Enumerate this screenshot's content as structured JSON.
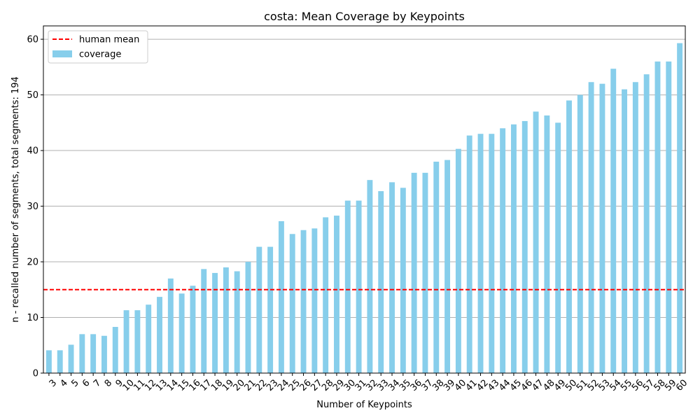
{
  "chart_data": {
    "type": "bar",
    "title": "costa: Mean Coverage by Keypoints",
    "xlabel": "Number of Keypoints",
    "ylabel": "n - recalled number of segments, total segments: 194",
    "ylim": [
      0,
      62.4
    ],
    "yticks": [
      0,
      10,
      20,
      30,
      40,
      50,
      60
    ],
    "grid": "horizontal",
    "legend_position": "top-left",
    "bar_color": "#87ceeb",
    "reference_line": {
      "name": "human mean",
      "value": 15,
      "color": "#ff0000",
      "style": "dashed"
    },
    "series": [
      {
        "name": "coverage"
      }
    ],
    "categories": [
      "3",
      "4",
      "5",
      "6",
      "7",
      "8",
      "9",
      "10",
      "11",
      "12",
      "13",
      "14",
      "15",
      "16",
      "17",
      "18",
      "19",
      "20",
      "21",
      "22",
      "23",
      "24",
      "25",
      "26",
      "27",
      "28",
      "29",
      "30",
      "31",
      "32",
      "33",
      "34",
      "35",
      "36",
      "37",
      "38",
      "39",
      "40",
      "41",
      "42",
      "43",
      "44",
      "45",
      "46",
      "47",
      "48",
      "49",
      "50",
      "51",
      "52",
      "53",
      "54",
      "55",
      "56",
      "57",
      "58",
      "59",
      "60"
    ],
    "values": [
      4.1,
      4.1,
      5.1,
      7.0,
      7.0,
      6.7,
      8.3,
      11.3,
      11.3,
      12.3,
      13.7,
      17.0,
      14.3,
      15.7,
      18.7,
      18.0,
      19.0,
      18.3,
      20.0,
      22.7,
      22.7,
      27.3,
      25.0,
      25.7,
      26.0,
      28.0,
      28.3,
      31.0,
      31.0,
      34.7,
      32.7,
      34.3,
      33.3,
      36.0,
      36.0,
      38.0,
      38.3,
      40.3,
      42.7,
      43.0,
      43.0,
      44.0,
      44.7,
      45.3,
      47.0,
      46.3,
      45.0,
      49.0,
      50.0,
      52.3,
      52.0,
      54.7,
      51.0,
      52.3,
      53.7,
      56.0,
      56.0,
      59.3
    ]
  }
}
